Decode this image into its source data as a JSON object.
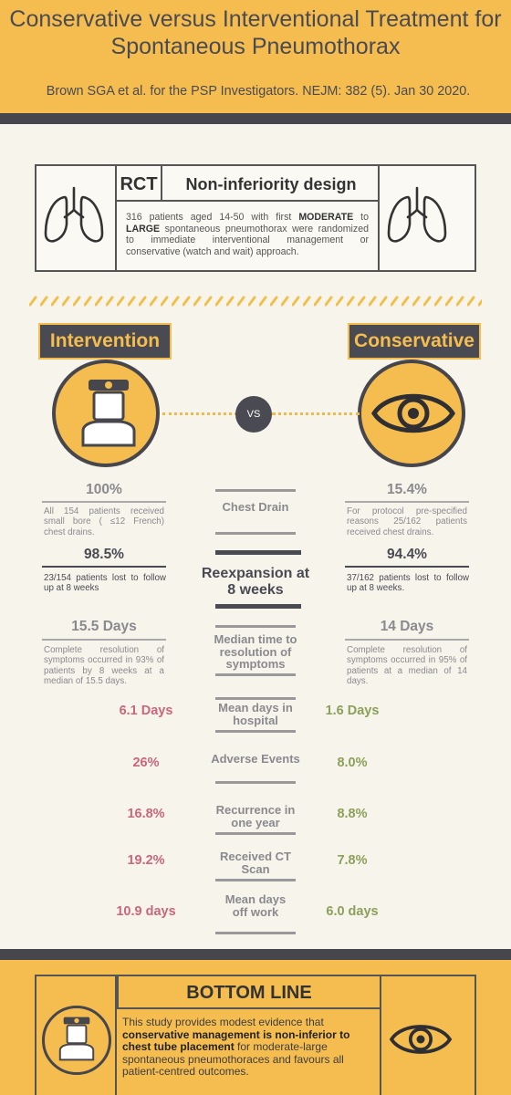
{
  "header": {
    "title": "Conservative versus Interventional Treatment for Spontaneous Pneumothorax",
    "citation": "Brown SGA et al. for the PSP Investigators. NEJM: 382 (5). Jan 30 2020."
  },
  "rct": {
    "label": "RCT",
    "design": "Non-inferiority design",
    "desc_part1": "316 patients aged 14-50 with first ",
    "desc_moderate": "MODERATE",
    "desc_part2": " to ",
    "desc_large": "LARGE",
    "desc_part3": " spontaneous pneumothorax were randomized to immediate interventional management or conservative (watch and wait) approach."
  },
  "arms": {
    "left": "Intervention",
    "right": "Conservative",
    "vs": "VS"
  },
  "stats": {
    "chest_drain": {
      "label": "Chest Drain",
      "left_value": "100%",
      "left_desc": "All 154 patients received small bore ( ≤12 French) chest drains.",
      "right_value": "15.4%",
      "right_desc": "For protocol pre-specified reasons 25/162 patients received chest drains."
    },
    "reexpansion": {
      "label": "Reexpansion at 8 weeks",
      "left_value": "98.5%",
      "left_desc": "23/154 patients lost to follow up at 8 weeks",
      "right_value": "94.4%",
      "right_desc": "37/162 patients lost to follow up at 8 weeks."
    },
    "median_time": {
      "label": "Median time to resolution of symptoms",
      "left_value": "15.5 Days",
      "left_desc": "Complete resolution of symptoms occurred in 93% of patients by 8 weeks at a median of 15.5 days.",
      "right_value": "14 Days",
      "right_desc": "Complete resolution of symptoms occurred in 95% of patients at a median of 14 days."
    },
    "rows": [
      {
        "label": "Mean days in hospital",
        "left": "6.1 Days",
        "right": "1.6 Days"
      },
      {
        "label": "Adverse Events",
        "left": "26%",
        "right": "8.0%"
      },
      {
        "label": "Recurrence in one year",
        "left": "16.8%",
        "right": "8.8%"
      },
      {
        "label": "Received CT Scan",
        "left": "19.2%",
        "right": "7.8%"
      },
      {
        "label": "Mean days off work",
        "left": "10.9 days",
        "right": "6.0 days"
      }
    ]
  },
  "bottom": {
    "title": "BOTTOM LINE",
    "text_part1": "This study provides modest evidence that ",
    "text_bold": "conservative management is non-inferior to chest tube placement",
    "text_part2": " for moderate-large spontaneous pneumothoraces and favours all patient-centred outcomes."
  },
  "colors": {
    "accent": "#f5bd4f",
    "dark": "#46464c",
    "red": "#c8687a",
    "green": "#8ba05a"
  },
  "icons": [
    "lungs-icon",
    "doctor-icon",
    "eye-icon"
  ]
}
